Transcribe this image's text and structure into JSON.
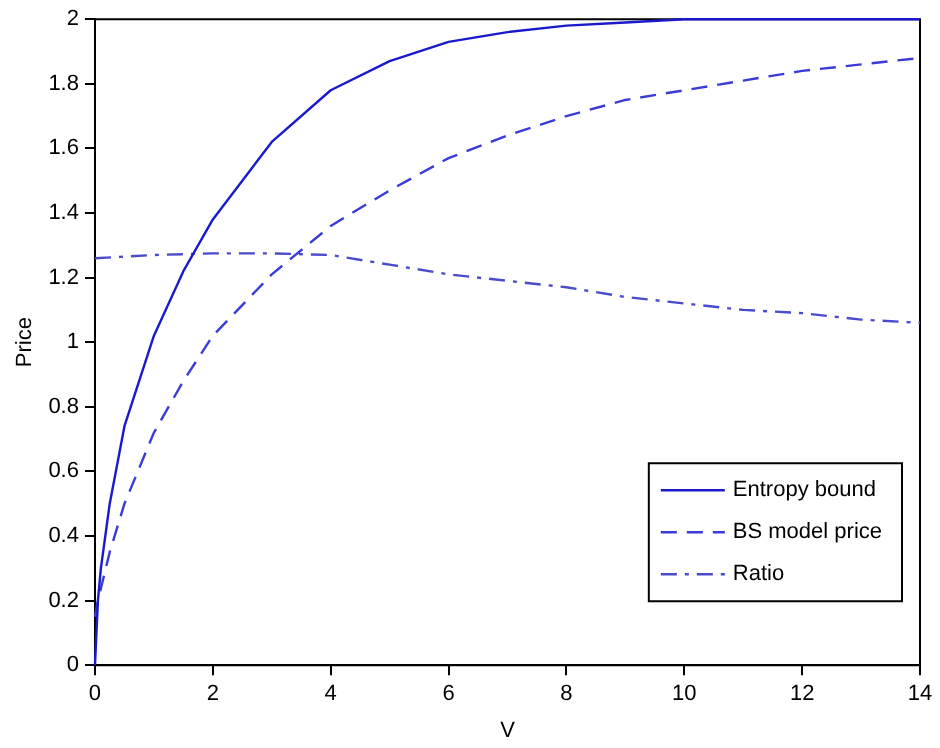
{
  "chart_data": {
    "type": "line",
    "xlabel": "V",
    "ylabel": "Price",
    "xlim": [
      0,
      14
    ],
    "xticks": [
      0,
      2,
      4,
      6,
      8,
      10,
      12,
      14
    ],
    "ylim": [
      0,
      2
    ],
    "yticks": [
      0,
      0.2,
      0.4,
      0.6,
      0.8,
      1,
      1.2,
      1.4,
      1.6,
      1.8,
      2
    ],
    "grid": false,
    "legend": "bottom right",
    "marker": "none",
    "series": [
      {
        "name": "Entropy bound",
        "color": "#1a1acc",
        "line_style": "solid",
        "x": [
          0,
          0.05,
          0.1,
          0.25,
          0.5,
          1,
          1.5,
          2,
          3,
          4,
          5,
          6,
          7,
          8,
          9,
          10,
          12,
          14
        ],
        "values": [
          0,
          0.2,
          0.3,
          0.5,
          0.74,
          1.02,
          1.22,
          1.38,
          1.62,
          1.78,
          1.87,
          1.93,
          1.96,
          1.98,
          1.99,
          2,
          2,
          2
        ]
      },
      {
        "name": "BS model price",
        "color": "#3a3ad8",
        "line_style": "dashed",
        "x": [
          0,
          0.05,
          0.25,
          0.5,
          1,
          1.5,
          2,
          3,
          4,
          5,
          6,
          7,
          8,
          9,
          10,
          11,
          12,
          13,
          14
        ],
        "values": [
          0.15,
          0.2,
          0.35,
          0.5,
          0.72,
          0.88,
          1.02,
          1.21,
          1.36,
          1.47,
          1.57,
          1.64,
          1.7,
          1.75,
          1.78,
          1.81,
          1.84,
          1.86,
          1.88
        ]
      },
      {
        "name": "Ratio",
        "color": "#4a4acc",
        "line_style": "dashdot",
        "x": [
          0,
          1,
          2,
          3,
          4,
          5,
          6,
          7,
          8,
          9,
          10,
          11,
          12,
          13,
          14
        ],
        "values": [
          1.26,
          1.27,
          1.275,
          1.275,
          1.27,
          1.24,
          1.21,
          1.19,
          1.17,
          1.14,
          1.12,
          1.1,
          1.09,
          1.07,
          1.06
        ]
      }
    ]
  }
}
